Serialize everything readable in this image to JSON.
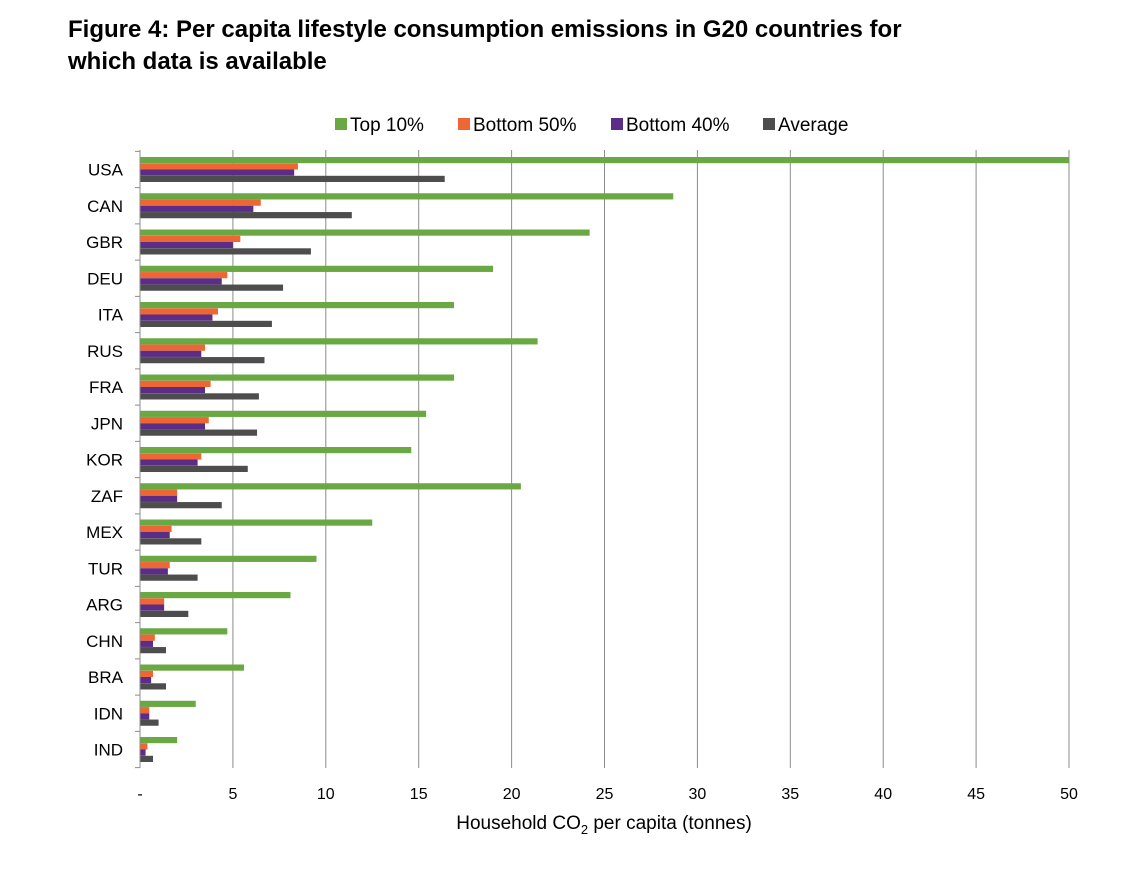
{
  "figure": {
    "title_line1": "Figure 4: Per capita lifestyle consumption emissions in G20 countries for",
    "title_line2": "which data is available"
  },
  "chart_data": {
    "type": "bar",
    "orientation": "horizontal",
    "title": "Figure 4: Per capita lifestyle consumption emissions in G20 countries for which data is available",
    "xlabel": "Household CO2 per capita (tonnes)",
    "xlabel_main": "Household CO",
    "xlabel_sub": "2",
    "xlabel_suffix": " per capita (tonnes)",
    "ylabel": "",
    "xlim": [
      0,
      50
    ],
    "xticks": [
      0,
      5,
      10,
      15,
      20,
      25,
      30,
      35,
      40,
      45,
      50
    ],
    "xtick_labels": [
      "-",
      "5",
      "10",
      "15",
      "20",
      "25",
      "30",
      "35",
      "40",
      "45",
      "50"
    ],
    "grid": "vertical",
    "legend_position": "top-center",
    "categories": [
      "USA",
      "CAN",
      "GBR",
      "DEU",
      "ITA",
      "RUS",
      "FRA",
      "JPN",
      "KOR",
      "ZAF",
      "MEX",
      "TUR",
      "ARG",
      "CHN",
      "BRA",
      "IDN",
      "IND"
    ],
    "series": [
      {
        "name": "Top 10%",
        "color": "#6aa843",
        "values": [
          50,
          28.7,
          24.2,
          19,
          16.9,
          21.4,
          16.9,
          15.4,
          14.6,
          20.5,
          12.5,
          9.5,
          8.1,
          4.7,
          5.6,
          3,
          2
        ]
      },
      {
        "name": "Bottom 50%",
        "color": "#ee6633",
        "values": [
          8.5,
          6.5,
          5.4,
          4.7,
          4.2,
          3.5,
          3.8,
          3.7,
          3.3,
          2,
          1.7,
          1.6,
          1.3,
          0.8,
          0.7,
          0.5,
          0.4
        ]
      },
      {
        "name": "Bottom 40%",
        "color": "#5b2d86",
        "values": [
          8.3,
          6.1,
          5,
          4.4,
          3.9,
          3.3,
          3.5,
          3.5,
          3.1,
          2,
          1.6,
          1.5,
          1.3,
          0.7,
          0.6,
          0.5,
          0.3
        ]
      },
      {
        "name": "Average",
        "color": "#4d4d4d",
        "values": [
          16.4,
          11.4,
          9.2,
          7.7,
          7.1,
          6.7,
          6.4,
          6.3,
          5.8,
          4.4,
          3.3,
          3.1,
          2.6,
          1.4,
          1.4,
          1,
          0.7
        ]
      }
    ]
  }
}
